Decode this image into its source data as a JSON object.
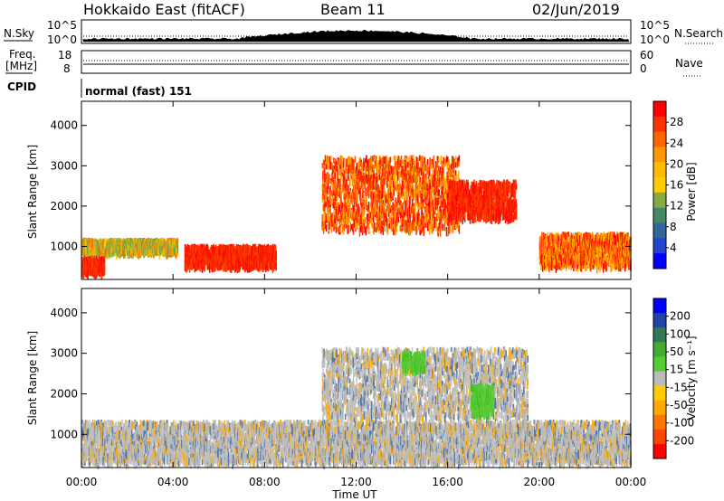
{
  "header": {
    "station": "Hokkaido East (fitACF)",
    "beam": "Beam 11",
    "date": "02/Jun/2019"
  },
  "top_panels": {
    "nsky_label": "N.Sky",
    "nsky_ticks": [
      "10^5",
      "10^0"
    ],
    "nsearch_label": "N.Search",
    "nsearch_ticks": [
      "10^5",
      "10^0"
    ],
    "freq_label_1": "Freq.",
    "freq_label_2": "[MHz]",
    "freq_ticks": [
      "18",
      "8"
    ],
    "nave_label": "Nave",
    "nave_ticks": [
      "60",
      "0"
    ],
    "cpid_label": "CPID",
    "cpid_value": "normal (fast) 151"
  },
  "chart_data": [
    {
      "type": "heatmap",
      "panel": "power",
      "ylabel": "Slant Range [km]",
      "y_ticks": [
        "1000",
        "2000",
        "3000",
        "4000"
      ],
      "ylim": [
        180,
        4600
      ],
      "colorbar_label": "Power [dB]",
      "colorbar_ticks": [
        "28",
        "24",
        "20",
        "16",
        "12",
        "8",
        "4"
      ],
      "colorbar_colors": [
        "#ff0000",
        "#ff3300",
        "#ff6600",
        "#ff9900",
        "#ffbb00",
        "#ffcc00",
        "#88aa44",
        "#448866",
        "#336699",
        "#2244cc",
        "#0000ff"
      ],
      "scatter_bands": [
        {
          "t_start": 0.0,
          "t_end": 4.2,
          "range_min": 850,
          "range_max": 1150,
          "level": "mixed-green-orange"
        },
        {
          "t_start": 0.0,
          "t_end": 1.0,
          "range_min": 350,
          "range_max": 700,
          "level": "strong-red"
        },
        {
          "t_start": 4.5,
          "t_end": 8.5,
          "range_min": 500,
          "range_max": 1000,
          "level": "strong-red"
        },
        {
          "t_start": 10.5,
          "t_end": 16.5,
          "range_min": 1400,
          "range_max": 3200,
          "level": "strong-red-orange"
        },
        {
          "t_start": 16.0,
          "t_end": 19.0,
          "range_min": 1700,
          "range_max": 2600,
          "level": "strong-red"
        },
        {
          "t_start": 20.0,
          "t_end": 24.0,
          "range_min": 500,
          "range_max": 1300,
          "level": "mixed-orange-red"
        }
      ]
    },
    {
      "type": "heatmap",
      "panel": "velocity",
      "ylabel": "Slant Range [km]",
      "y_ticks": [
        "1000",
        "2000",
        "3000",
        "4000"
      ],
      "ylim": [
        180,
        4600
      ],
      "colorbar_label": "Velocity [m s⁻¹]",
      "colorbar_ticks": [
        "200",
        "100",
        "50",
        "15",
        "-15",
        "-50",
        "-100",
        "-200"
      ],
      "colorbar_colors": [
        "#0000ff",
        "#2244aa",
        "#337755",
        "#44aa33",
        "#55cc33",
        "#bbbbbb",
        "#ffcc00",
        "#ffaa00",
        "#ff7700",
        "#ff4400",
        "#ff0000"
      ],
      "scatter_bands": [
        {
          "t_start": 0.0,
          "t_end": 24.0,
          "range_min": 300,
          "range_max": 1300,
          "level": "ground-scatter-grey"
        },
        {
          "t_start": 10.5,
          "t_end": 19.5,
          "range_min": 1400,
          "range_max": 3100,
          "level": "ground-scatter-grey"
        },
        {
          "t_start": 14.0,
          "t_end": 15.0,
          "range_min": 2600,
          "range_max": 3000,
          "level": "green"
        },
        {
          "t_start": 17.0,
          "t_end": 18.0,
          "range_min": 1500,
          "range_max": 2200,
          "level": "green"
        }
      ]
    }
  ],
  "x_axis": {
    "ticks": [
      "00:00",
      "04:00",
      "08:00",
      "12:00",
      "16:00",
      "20:00",
      "00:00"
    ],
    "label": "Time UT"
  }
}
